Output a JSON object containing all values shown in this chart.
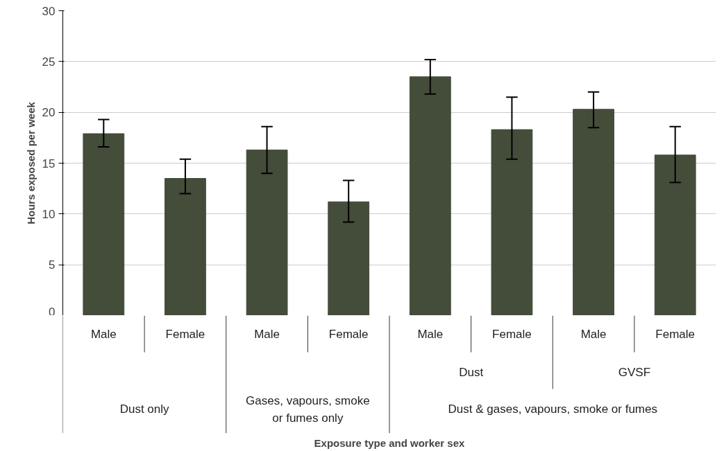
{
  "chart_data": {
    "type": "bar",
    "ylabel": "Hours exposed per week",
    "categories": [
      "Male",
      "Female",
      "Male",
      "Female",
      "Male",
      "Female",
      "Male",
      "Female"
    ],
    "values": [
      17.9,
      13.5,
      16.3,
      11.2,
      23.5,
      18.3,
      20.3,
      15.8
    ],
    "errors": [
      [
        16.6,
        19.3
      ],
      [
        12.0,
        15.4
      ],
      [
        14.0,
        18.6
      ],
      [
        9.2,
        13.3
      ],
      [
        21.8,
        25.2
      ],
      [
        15.4,
        21.5
      ],
      [
        18.5,
        22.0
      ],
      [
        13.1,
        18.6
      ]
    ],
    "color": "#444c3a",
    "annotations": [
      "Dust",
      "GVSF",
      "Dust only",
      "Gases, vapours, smoke\nor fumes only",
      "Dust & gases, vapours, smoke or fumes",
      "Exposure type and worker sex"
    ],
    "ylim": [
      0,
      30
    ],
    "yticks": [
      0,
      5,
      10,
      15,
      20,
      25,
      30
    ],
    "grid": "y"
  }
}
